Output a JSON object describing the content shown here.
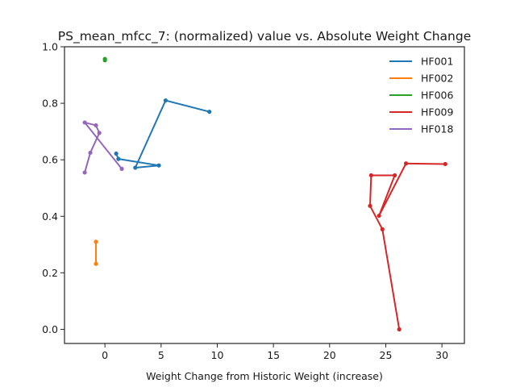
{
  "chart_data": {
    "type": "line",
    "title": "PS_mean_mfcc_7: (normalized) value vs. Absolute Weight Change",
    "xlabel": "Weight Change from Historic Weight (increase)",
    "ylabel": "",
    "xlim": [
      -3.6,
      32.0
    ],
    "ylim": [
      -0.05,
      1.0
    ],
    "xticks": [
      0,
      5,
      10,
      15,
      20,
      25,
      30
    ],
    "yticks": [
      0.0,
      0.2,
      0.4,
      0.6,
      0.8,
      1.0
    ],
    "xtick_labels": [
      "0",
      "5",
      "10",
      "15",
      "20",
      "25",
      "30"
    ],
    "ytick_labels": [
      "0.0",
      "0.2",
      "0.4",
      "0.6",
      "0.8",
      "1.0"
    ],
    "grid": false,
    "legend_position": "top-right",
    "series": [
      {
        "name": "HF001",
        "color": "#1f77b4",
        "points": [
          [
            1.0,
            0.622
          ],
          [
            1.2,
            0.603
          ],
          [
            4.8,
            0.58
          ],
          [
            2.7,
            0.572
          ],
          [
            5.4,
            0.81
          ],
          [
            9.3,
            0.77
          ]
        ]
      },
      {
        "name": "HF002",
        "color": "#ff7f0e",
        "points": [
          [
            -0.8,
            0.31
          ],
          [
            -0.8,
            0.232
          ]
        ]
      },
      {
        "name": "HF006",
        "color": "#2ca02c",
        "points": [
          [
            0.0,
            0.957
          ],
          [
            0.0,
            0.952
          ]
        ]
      },
      {
        "name": "HF009",
        "color": "#d62728",
        "points": [
          [
            26.2,
            0.0
          ],
          [
            24.7,
            0.354
          ],
          [
            23.6,
            0.437
          ],
          [
            23.7,
            0.545
          ],
          [
            25.8,
            0.545
          ],
          [
            24.4,
            0.402
          ],
          [
            26.8,
            0.587
          ],
          [
            30.3,
            0.585
          ]
        ]
      },
      {
        "name": "HF018",
        "color": "#9467bd",
        "points": [
          [
            -1.8,
            0.555
          ],
          [
            -1.3,
            0.625
          ],
          [
            -0.5,
            0.695
          ],
          [
            -0.8,
            0.722
          ],
          [
            -1.8,
            0.732
          ],
          [
            1.5,
            0.568
          ]
        ]
      }
    ]
  }
}
